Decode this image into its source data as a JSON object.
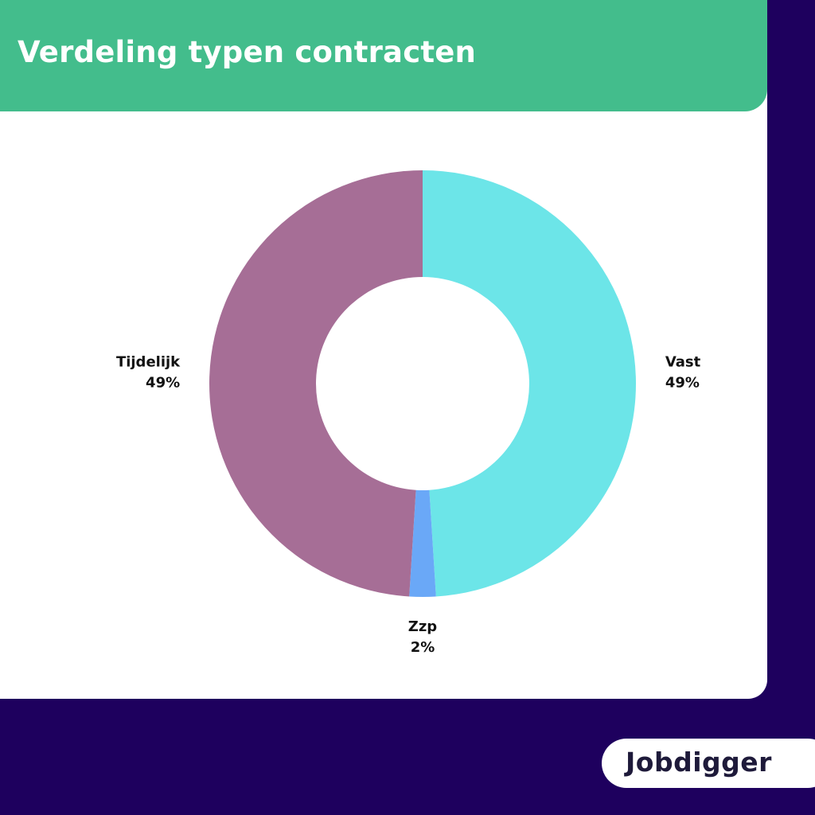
{
  "header": {
    "title": "Verdeling typen contracten"
  },
  "chart_data": {
    "type": "pie",
    "title": "Verdeling typen contracten",
    "donut": true,
    "slices": [
      {
        "label": "Vast",
        "value": 49,
        "value_label": "49%",
        "color": "#6ce5e8"
      },
      {
        "label": "Zzp",
        "value": 2,
        "value_label": "2%",
        "color": "#6aa8f7"
      },
      {
        "label": "Tijdelijk",
        "value": 49,
        "value_label": "49%",
        "color": "#a66e96"
      }
    ]
  },
  "brand": {
    "logo_text": "Jobdigger"
  },
  "colors": {
    "background": "#1e005e",
    "header": "#43bd8c",
    "card": "#ffffff"
  }
}
